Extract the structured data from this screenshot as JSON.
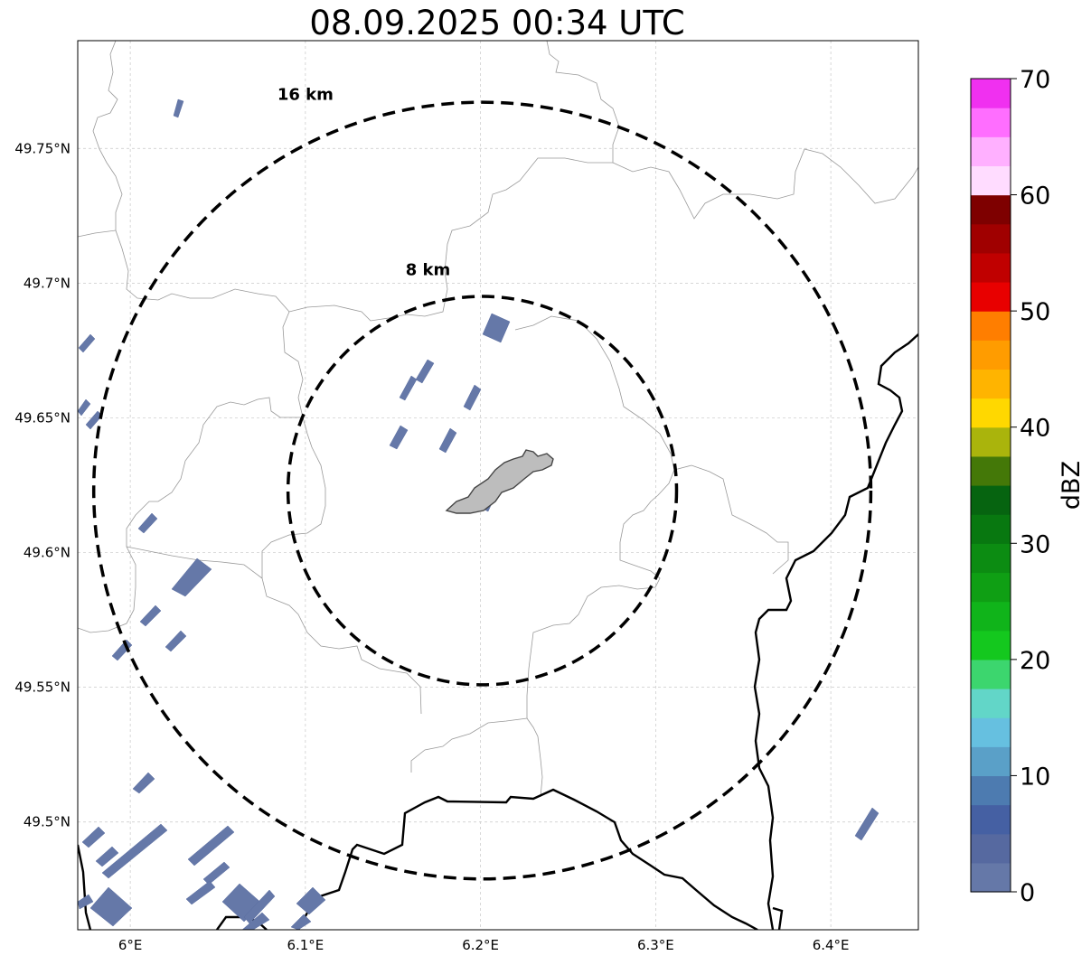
{
  "title": "08.09.2025 00:34 UTC",
  "map": {
    "lon_range": [
      5.97,
      6.45
    ],
    "lat_range": [
      49.46,
      49.79
    ],
    "lon_ticks": [
      {
        "value": 6.0,
        "label": "6°E"
      },
      {
        "value": 6.1,
        "label": "6.1°E"
      },
      {
        "value": 6.2,
        "label": "6.2°E"
      },
      {
        "value": 6.3,
        "label": "6.3°E"
      },
      {
        "value": 6.4,
        "label": "6.4°E"
      }
    ],
    "lat_ticks": [
      {
        "value": 49.5,
        "label": "49.5°N"
      },
      {
        "value": 49.55,
        "label": "49.55°N"
      },
      {
        "value": 49.6,
        "label": "49.6°N"
      },
      {
        "value": 49.65,
        "label": "49.65°N"
      },
      {
        "value": 49.7,
        "label": "49.7°N"
      },
      {
        "value": 49.75,
        "label": "49.75°N"
      }
    ],
    "gridlines": true,
    "center": {
      "lon": 6.201,
      "lat": 49.623
    },
    "range_rings": [
      {
        "radius_km": 8,
        "label": "8 km",
        "label_lon": 6.17,
        "label_lat": 49.703
      },
      {
        "radius_km": 16,
        "label": "16 km",
        "label_lon": 6.1,
        "label_lat": 49.768
      }
    ]
  },
  "colorbar": {
    "label": "dBZ",
    "min": 0,
    "max": 70,
    "step": 2.5,
    "ticks": [
      "0",
      "10",
      "20",
      "30",
      "40",
      "50",
      "60",
      "70"
    ],
    "colors": [
      "#6578a8",
      "#5669a0",
      "#4560a3",
      "#4d7bb0",
      "#5aa0c8",
      "#66c0e0",
      "#62d6c8",
      "#3cd66e",
      "#14c81e",
      "#10b41a",
      "#0f9f14",
      "#0c8c12",
      "#087810",
      "#066410",
      "#447808",
      "#aab40c",
      "#ffd800",
      "#ffb400",
      "#ff9c00",
      "#ff7e00",
      "#e80000",
      "#c00000",
      "#a00000",
      "#7e0000",
      "#ffdcff",
      "#ffb0ff",
      "#ff6eff",
      "#f030f0"
    ]
  },
  "echo_color": "#6578a8"
}
